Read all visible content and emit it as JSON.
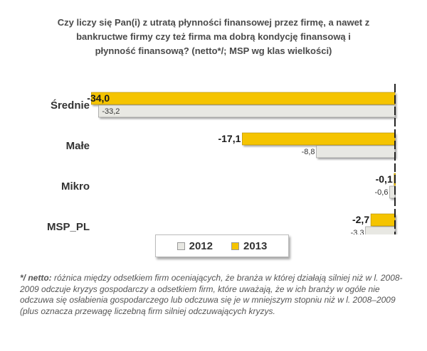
{
  "chart_data": {
    "type": "bar",
    "orientation": "horizontal",
    "title": "Czy liczy się Pan(i) z utratą płynności finansowej przez firmę, a nawet z\nbankructwe firmy czy też firma ma dobrą kondycję finansową i\npłynność finansową? (netto*/; MSP wg klas wielkości)",
    "categories": [
      "Średnie",
      "Małe",
      "Mikro",
      "MSP_PL"
    ],
    "series": [
      {
        "name": "2013",
        "color": "#f5c400",
        "values": [
          -34.0,
          -17.1,
          -0.1,
          -2.7
        ],
        "labels": [
          "-34,0",
          "-17,1",
          "-0,1",
          "-2,7"
        ]
      },
      {
        "name": "2012",
        "color": "#e8e8e3",
        "values": [
          -33.2,
          -8.8,
          -0.6,
          -3.3
        ],
        "labels": [
          "-33,2",
          "-8,8",
          "-0,6",
          "-3,3"
        ]
      }
    ],
    "xlim": [
      -35,
      0
    ],
    "legend": {
      "position": "bottom",
      "items": [
        "2012",
        "2013"
      ]
    },
    "grid": false
  },
  "footnote": {
    "label": "*/ netto:",
    "text": " różnica między odsetkiem firm oceniających, że branża w której działają silniej niż w l. 2008-2009 odczuje kryzys gospodarczy a odsetkiem firm, które uważają, że w ich branży w ogóle nie odczuwa się osłabienia gospodarczego lub odczuwa się je w mniejszym stopniu niż w l. 2008–2009 (plus oznacza przewagę liczebną firm silniej odczuwających kryzys."
  }
}
